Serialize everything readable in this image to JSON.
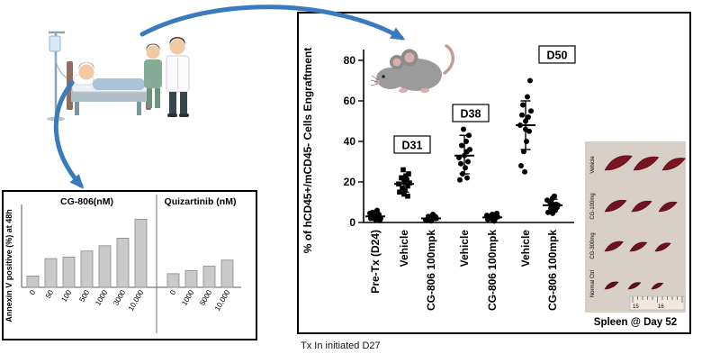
{
  "figure": {
    "tx_caption": "Tx In initiated D27"
  },
  "icons": {
    "patient": "patient-bedside-illustration",
    "mouse": "lab-mouse-illustration",
    "arrows": "blue-curved-flow-arrows"
  },
  "colors": {
    "arrow_blue": "#3a7bbf",
    "photo_bg": "#d8cfc7",
    "spleen_reds": [
      "#7a1420",
      "#6f1320",
      "#6a1220",
      "#5d1019"
    ],
    "point_black": "#000000"
  },
  "chart_data": [
    {
      "id": "annexin-bar-chart",
      "type": "bar",
      "ylabel": "Annexin V positive (%) at 48h",
      "ylim": [
        0,
        100
      ],
      "grid": false,
      "bar_color": "#c9c9c9",
      "bar_border": "#8a8a8a",
      "groups": [
        {
          "label": "CG-806(nM)",
          "categories": [
            "0",
            "50",
            "100",
            "500",
            "1000",
            "3000",
            "10,000"
          ],
          "values": [
            15,
            38,
            40,
            48,
            55,
            65,
            90
          ]
        },
        {
          "label": "Quizartinib (nM)",
          "categories": [
            "0",
            "1000",
            "5000",
            "10,000"
          ],
          "values": [
            18,
            22,
            28,
            36
          ]
        }
      ]
    },
    {
      "id": "engraftment-scatter",
      "type": "scatter",
      "ylabel": "% of hCD45+/mCD45- Cells Engraftment",
      "ylim": [
        0,
        80
      ],
      "yticks": [
        0,
        20,
        40,
        60,
        80
      ],
      "legend": "none",
      "groups": [
        {
          "label": "Pre-Tx (D24)",
          "marker": "circle",
          "mean": 3,
          "err_low": 1.5,
          "err_high": 4.5,
          "points": [
            [
              -5,
              2
            ],
            [
              -2,
              3
            ],
            [
              1,
              2.5
            ],
            [
              4,
              4
            ],
            [
              -3,
              5
            ],
            [
              0,
              1.5
            ],
            [
              3,
              3.5
            ],
            [
              6,
              2
            ],
            [
              -6,
              4.5
            ],
            [
              2,
              6
            ],
            [
              5,
              1
            ]
          ]
        },
        {
          "label": "Vehicle",
          "timepoint": "D31",
          "marker": "square",
          "mean": 19,
          "err_low": 15,
          "err_high": 23,
          "points": [
            [
              -5,
              15
            ],
            [
              -2,
              17
            ],
            [
              1,
              16
            ],
            [
              4,
              18
            ],
            [
              -6,
              19
            ],
            [
              0,
              20
            ],
            [
              3,
              21
            ],
            [
              6,
              19.5
            ],
            [
              -3,
              22
            ],
            [
              2,
              23
            ],
            [
              5,
              24
            ],
            [
              -1,
              26
            ],
            [
              0,
              14
            ],
            [
              4,
              13
            ]
          ]
        },
        {
          "label": "CG-806 100mpk",
          "timepoint": "D31",
          "marker": "circle",
          "mean": 2,
          "err_low": 1,
          "err_high": 3,
          "points": [
            [
              -5,
              1
            ],
            [
              -2,
              2
            ],
            [
              1,
              1.5
            ],
            [
              4,
              2.5
            ],
            [
              -3,
              3
            ],
            [
              0,
              0.8
            ],
            [
              3,
              3.5
            ],
            [
              6,
              2
            ],
            [
              -6,
              1.2
            ],
            [
              2,
              4
            ],
            [
              5,
              2.8
            ]
          ]
        },
        {
          "label": "Vehicle",
          "timepoint": "D38",
          "marker": "circle",
          "mean": 33,
          "err_low": 24,
          "err_high": 43,
          "points": [
            [
              -5,
              21
            ],
            [
              -2,
              24
            ],
            [
              1,
              27
            ],
            [
              4,
              30
            ],
            [
              -6,
              32
            ],
            [
              0,
              33
            ],
            [
              3,
              35
            ],
            [
              6,
              36
            ],
            [
              -3,
              38
            ],
            [
              2,
              40
            ],
            [
              5,
              43
            ],
            [
              -1,
              46
            ],
            [
              3,
              22
            ],
            [
              -4,
              29
            ]
          ]
        },
        {
          "label": "CG-806 100mpk",
          "timepoint": "D38",
          "marker": "circle",
          "mean": 2.5,
          "err_low": 1,
          "err_high": 4,
          "points": [
            [
              -5,
              1.5
            ],
            [
              -2,
              2.5
            ],
            [
              1,
              1
            ],
            [
              4,
              3
            ],
            [
              -3,
              2
            ],
            [
              0,
              4
            ],
            [
              3,
              1.8
            ],
            [
              6,
              2.8
            ],
            [
              -6,
              3.5
            ],
            [
              2,
              0.7
            ],
            [
              5,
              4.5
            ],
            [
              -1,
              2.2
            ]
          ]
        },
        {
          "label": "Vehicle",
          "timepoint": "D50",
          "marker": "circle",
          "mean": 48,
          "err_low": 36,
          "err_high": 60,
          "points": [
            [
              -5,
              28
            ],
            [
              -2,
              35
            ],
            [
              1,
              40
            ],
            [
              4,
              45
            ],
            [
              -6,
              48
            ],
            [
              0,
              50
            ],
            [
              3,
              52
            ],
            [
              6,
              55
            ],
            [
              -3,
              58
            ],
            [
              2,
              62
            ],
            [
              5,
              70
            ],
            [
              -1,
              25
            ],
            [
              0,
              46
            ],
            [
              -4,
              53
            ]
          ]
        },
        {
          "label": "CG-806 100mpk",
          "timepoint": "D50",
          "marker": "circle",
          "mean": 8.5,
          "err_low": 5.5,
          "err_high": 11.5,
          "points": [
            [
              -5,
              5
            ],
            [
              -2,
              7
            ],
            [
              1,
              8
            ],
            [
              4,
              9
            ],
            [
              -3,
              10
            ],
            [
              0,
              12
            ],
            [
              3,
              6
            ],
            [
              6,
              8.5
            ],
            [
              -6,
              11
            ],
            [
              2,
              13
            ],
            [
              5,
              7.5
            ],
            [
              -1,
              9.5
            ],
            [
              0,
              4.5
            ]
          ]
        }
      ],
      "annotations": [
        {
          "label": "D31",
          "group_index": 1
        },
        {
          "label": "D38",
          "group_index": 3
        },
        {
          "label": "D50",
          "group_index": 5
        }
      ]
    }
  ],
  "spleen_panel": {
    "caption": "Spleen @ Day 52",
    "rows": [
      {
        "label": "Vehicle"
      },
      {
        "label": "CG-100mg"
      },
      {
        "label": "CG-300mg"
      },
      {
        "label": "Normal Ctrl"
      }
    ],
    "ruler_numbers": [
      "15",
      "16"
    ]
  }
}
